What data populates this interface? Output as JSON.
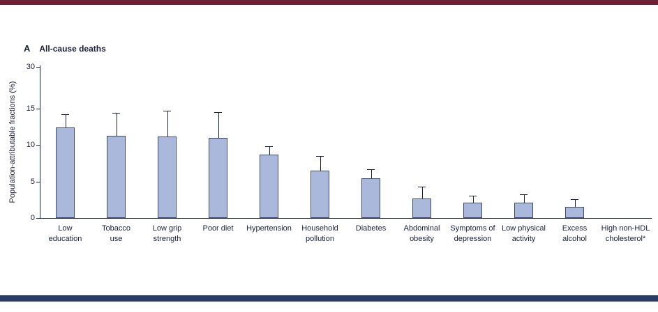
{
  "figure": {
    "panel_label": "A",
    "title": "All-cause deaths",
    "top_strip_color": "#6e2134",
    "bottom_strip_color": "#2b3a66"
  },
  "chart_data": {
    "type": "bar",
    "title": "All-cause deaths",
    "xlabel": "",
    "ylabel": "Population-attributable fractions (%)",
    "yticks": [
      0,
      5,
      10,
      15,
      30
    ],
    "ylim": [
      0,
      30
    ],
    "axis_break_above": 15,
    "grid": false,
    "legend_position": "none",
    "categories": [
      "Low education",
      "Tobacco use",
      "Low grip strength",
      "Poor diet",
      "Hypertension",
      "Household pollution",
      "Diabetes",
      "Abdominal obesity",
      "Symptoms of depression",
      "Low physical activity",
      "Excess alcohol",
      "High non-HDL cholesterol*"
    ],
    "category_label_lines": [
      [
        "Low",
        "education"
      ],
      [
        "Tobacco",
        "use"
      ],
      [
        "Low grip",
        "strength"
      ],
      [
        "Poor diet"
      ],
      [
        "Hypertension"
      ],
      [
        "Household",
        "pollution"
      ],
      [
        "Diabetes"
      ],
      [
        "Abdominal",
        "obesity"
      ],
      [
        "Symptoms of",
        "depression"
      ],
      [
        "Low physical",
        "activity"
      ],
      [
        "Excess",
        "alcohol"
      ],
      [
        "High non-HDL",
        "cholesterol*"
      ]
    ],
    "values": [
      12.4,
      11.3,
      11.2,
      11.0,
      8.7,
      6.5,
      5.4,
      2.7,
      2.1,
      2.1,
      1.5,
      0
    ],
    "upper_ci": [
      14.2,
      14.4,
      14.7,
      14.5,
      9.8,
      8.5,
      6.7,
      4.3,
      3.1,
      3.2,
      2.6,
      0
    ],
    "colors": {
      "bar_fill": "#aab8db",
      "bar_border": "#3e4b77",
      "error_bar": "#1a1f3c",
      "axis": "#1a1f3c",
      "text": "#1a1f3c"
    }
  }
}
